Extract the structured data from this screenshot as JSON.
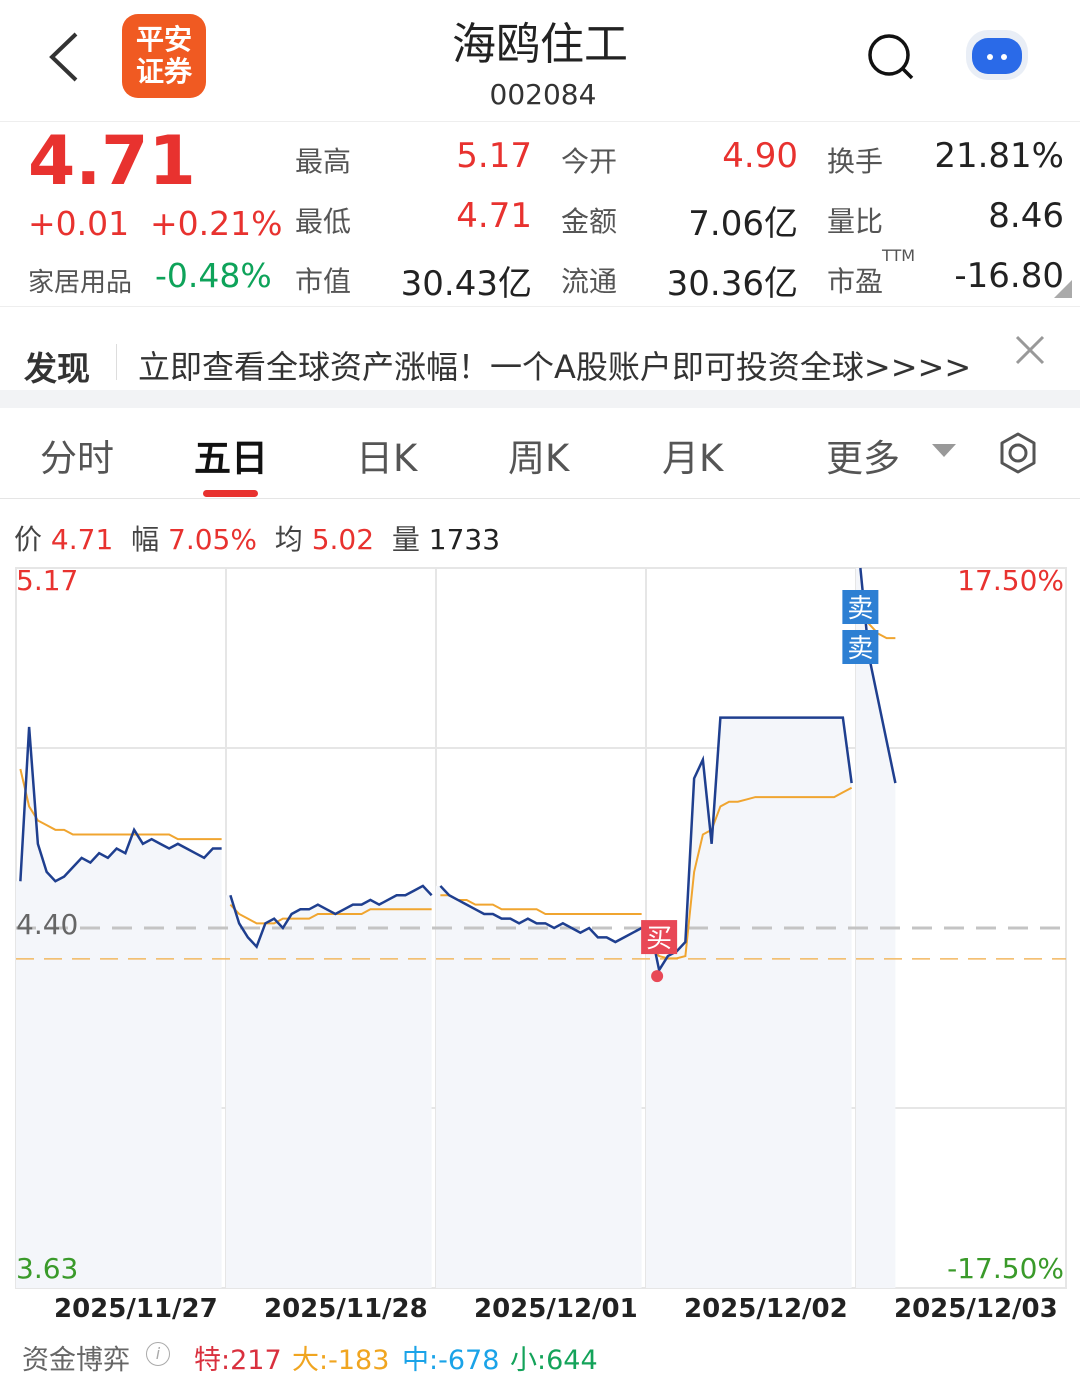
{
  "header": {
    "title": "海鸥住工",
    "code": "002084",
    "logo_text": [
      "平安",
      "证券"
    ]
  },
  "quote": {
    "price": "4.71",
    "change": "+0.01",
    "change_pct": "+0.21%",
    "sector": "家居用品",
    "sector_pct": "-0.48%",
    "stats": [
      {
        "label": "最高",
        "value": "5.17",
        "color": "red"
      },
      {
        "label": "今开",
        "value": "4.90",
        "color": "red"
      },
      {
        "label": "换手",
        "value": "21.81%",
        "color": "dark"
      },
      {
        "label": "最低",
        "value": "4.71",
        "color": "red"
      },
      {
        "label": "金额",
        "value": "7.06亿",
        "color": "dark"
      },
      {
        "label": "量比",
        "value": "8.46",
        "color": "dark"
      },
      {
        "label": "市值",
        "value": "30.43亿",
        "color": "dark"
      },
      {
        "label": "流通",
        "value": "30.36亿",
        "color": "dark"
      },
      {
        "label": "市盈",
        "value": "-16.80",
        "color": "dark"
      }
    ],
    "ttm": "TTM"
  },
  "banner": {
    "tag": "发现",
    "text": "立即查看全球资产涨幅！一个A股账户即可投资全球>>>>"
  },
  "tabs": [
    {
      "label": "分时"
    },
    {
      "label": "五日",
      "active": true
    },
    {
      "label": "日K"
    },
    {
      "label": "周K"
    },
    {
      "label": "月K"
    },
    {
      "label": "更多"
    }
  ],
  "info": {
    "price_label": "价",
    "price": "4.71",
    "amp_label": "幅",
    "amp": "7.05%",
    "avg_label": "均",
    "avg": "5.02",
    "vol_label": "量",
    "vol": "1733"
  },
  "chart_data": {
    "type": "line",
    "ylim": [
      3.63,
      5.17
    ],
    "prev_close": 4.4,
    "ref_line": 4.334,
    "y_left_labels": [
      "5.17",
      "4.40",
      "3.63"
    ],
    "y_right_labels": [
      "17.50%",
      "-17.50%"
    ],
    "categories": [
      "2025/11/27",
      "2025/11/28",
      "2025/12/01",
      "2025/12/02",
      "2025/12/03"
    ],
    "colors": {
      "price": "#1f3f8f",
      "avg": "#f0a530",
      "buy": "#e84856",
      "sell": "#2d7fd3"
    },
    "price": [
      [
        4.5,
        4.83,
        4.58,
        4.52,
        4.5,
        4.51,
        4.53,
        4.55,
        4.54,
        4.56,
        4.55,
        4.57,
        4.56,
        4.61,
        4.58,
        4.59,
        4.58,
        4.57,
        4.58,
        4.57,
        4.56,
        4.55,
        4.57,
        4.57
      ],
      [
        4.47,
        4.41,
        4.38,
        4.36,
        4.41,
        4.42,
        4.4,
        4.43,
        4.44,
        4.44,
        4.45,
        4.44,
        4.43,
        4.44,
        4.45,
        4.45,
        4.46,
        4.45,
        4.46,
        4.47,
        4.47,
        4.48,
        4.49,
        4.47
      ],
      [
        4.49,
        4.47,
        4.46,
        4.45,
        4.44,
        4.43,
        4.43,
        4.42,
        4.42,
        4.41,
        4.42,
        4.41,
        4.41,
        4.4,
        4.41,
        4.4,
        4.39,
        4.4,
        4.38,
        4.38,
        4.37,
        4.38,
        4.39,
        4.4
      ],
      [
        4.4,
        4.31,
        4.34,
        4.35,
        4.37,
        4.72,
        4.76,
        4.58,
        4.85,
        4.85,
        4.85,
        4.85,
        4.85,
        4.85,
        4.85,
        4.85,
        4.85,
        4.85,
        4.85,
        4.85,
        4.85,
        4.85,
        4.85,
        4.71
      ],
      [
        5.17,
        4.98,
        4.89,
        4.8,
        4.71
      ]
    ],
    "avg": [
      [
        4.74,
        4.66,
        4.63,
        4.62,
        4.61,
        4.61,
        4.6,
        4.6,
        4.6,
        4.6,
        4.6,
        4.6,
        4.6,
        4.6,
        4.6,
        4.6,
        4.6,
        4.6,
        4.59,
        4.59,
        4.59,
        4.59,
        4.59,
        4.59
      ],
      [
        4.45,
        4.43,
        4.42,
        4.41,
        4.41,
        4.41,
        4.42,
        4.42,
        4.42,
        4.42,
        4.43,
        4.43,
        4.43,
        4.43,
        4.43,
        4.43,
        4.44,
        4.44,
        4.44,
        4.44,
        4.44,
        4.44,
        4.44,
        4.44
      ],
      [
        4.47,
        4.47,
        4.46,
        4.46,
        4.45,
        4.45,
        4.45,
        4.44,
        4.44,
        4.44,
        4.44,
        4.44,
        4.43,
        4.43,
        4.43,
        4.43,
        4.43,
        4.43,
        4.43,
        4.43,
        4.43,
        4.43,
        4.43,
        4.43
      ],
      [
        4.36,
        4.34,
        4.335,
        4.335,
        4.34,
        4.52,
        4.6,
        4.61,
        4.66,
        4.67,
        4.67,
        4.675,
        4.68,
        4.68,
        4.68,
        4.68,
        4.68,
        4.68,
        4.68,
        4.68,
        4.68,
        4.68,
        4.69,
        4.7
      ],
      [
        5.1,
        5.05,
        5.03,
        5.02,
        5.02
      ]
    ],
    "markers": [
      {
        "label": "买",
        "day": 3,
        "index": 1,
        "type": "buy"
      },
      {
        "label": "卖",
        "day": 4,
        "index": 0,
        "type": "sell"
      },
      {
        "label": "卖",
        "day": 4,
        "index": 0,
        "type": "sell"
      }
    ]
  },
  "fund_flow": {
    "label": "资金博弈",
    "items": [
      {
        "label": "特:217",
        "color": "#d9303e"
      },
      {
        "label": "大:-183",
        "color": "#f0a520"
      },
      {
        "label": "中:-678",
        "color": "#1aa3e8"
      },
      {
        "label": "小:644",
        "color": "#14a35a"
      }
    ]
  }
}
